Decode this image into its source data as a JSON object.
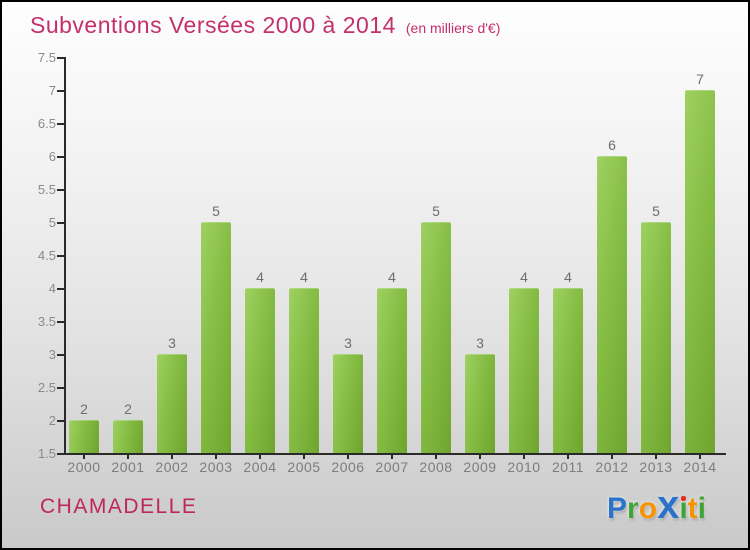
{
  "title": "Subventions Versées 2000 à 2014",
  "subtitle": "(en milliers d'€)",
  "title_color": "#c5306a",
  "footer": {
    "org_name": "CHAMADELLE",
    "org_color": "#bf265e",
    "logo_name": "Proxiti",
    "logo_letters": [
      {
        "ch": "P",
        "color": "#2b72c9",
        "size": 30
      },
      {
        "ch": "r",
        "color": "#3fa435",
        "size": 30
      },
      {
        "ch": "o",
        "color": "#f59300",
        "size": 30
      },
      {
        "ch": "x",
        "color": "#2b72c9",
        "size": 40,
        "bold": true
      },
      {
        "ch": "i",
        "color": "#3fa435",
        "size": 30,
        "dot": "#e03123"
      },
      {
        "ch": "t",
        "color": "#f59300",
        "size": 30
      },
      {
        "ch": "i",
        "color": "#3fa435",
        "size": 30
      }
    ]
  },
  "chart_data": {
    "type": "bar",
    "title": "Subventions Versées 2000 à 2014",
    "subtitle": "(en milliers d'€)",
    "categories": [
      "2000",
      "2001",
      "2002",
      "2003",
      "2004",
      "2005",
      "2006",
      "2007",
      "2008",
      "2009",
      "2010",
      "2011",
      "2012",
      "2013",
      "2014"
    ],
    "values": [
      2,
      2,
      3,
      5,
      4,
      4,
      3,
      4,
      5,
      3,
      4,
      4,
      6,
      5,
      7
    ],
    "xlabel": "",
    "ylabel": "",
    "ylim": [
      1.5,
      7.5
    ],
    "ytick_step": 0.5,
    "grid": false,
    "legend": false,
    "bar_color_light": "#9ed161",
    "bar_color_dark": "#6fa52e",
    "axis_color": "#2a2a2a",
    "tick_label_color": "#8a8a8a",
    "value_label_color": "#6e6e6e"
  }
}
